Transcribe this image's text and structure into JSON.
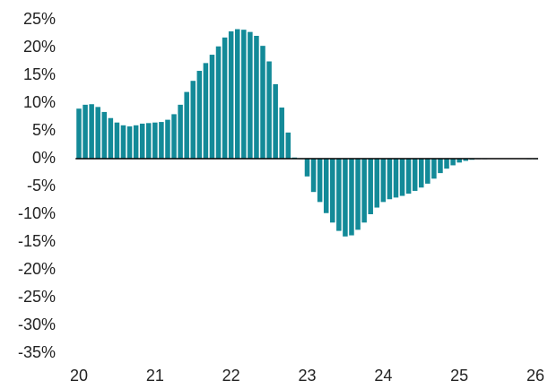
{
  "chart_data": {
    "type": "bar",
    "color": "#138a98",
    "categories": [
      "20",
      null,
      null,
      null,
      null,
      null,
      null,
      null,
      null,
      null,
      null,
      null,
      "21",
      null,
      null,
      null,
      null,
      null,
      null,
      null,
      null,
      null,
      null,
      null,
      "22",
      null,
      null,
      null,
      null,
      null,
      null,
      null,
      null,
      null,
      null,
      null,
      "23",
      null,
      null,
      null,
      null,
      null,
      null,
      null,
      null,
      null,
      null,
      null,
      "24",
      null,
      null,
      null,
      null,
      null,
      null,
      null,
      null,
      null,
      null,
      null,
      "25",
      null,
      null,
      null,
      null,
      null,
      null,
      null,
      null,
      null,
      null,
      null,
      "26"
    ],
    "values": [
      9.0,
      9.7,
      9.8,
      9.3,
      8.4,
      7.3,
      6.5,
      6.0,
      5.8,
      6.0,
      6.3,
      6.4,
      6.5,
      6.6,
      7.0,
      8.0,
      9.7,
      12.0,
      14.0,
      15.8,
      17.2,
      18.7,
      20.2,
      21.8,
      22.9,
      23.3,
      23.2,
      22.8,
      22.1,
      20.3,
      17.5,
      13.4,
      9.2,
      4.7,
      0.2,
      -0.1,
      -3.2,
      -6.0,
      -7.8,
      -9.8,
      -11.5,
      -13.0,
      -14.0,
      -13.8,
      -12.8,
      -11.5,
      -10.0,
      -8.8,
      -7.8,
      -7.3,
      -7.0,
      -6.7,
      -6.3,
      -5.8,
      -5.2,
      -4.5,
      -3.6,
      -2.6,
      -1.8,
      -1.2,
      -0.7,
      -0.4,
      -0.2,
      -0.1,
      -0.1,
      0,
      0,
      0,
      0,
      0,
      0,
      -0.1,
      -0.1
    ],
    "ylim": [
      -35,
      25
    ],
    "yticks": [
      {
        "value": 25,
        "label": "25%"
      },
      {
        "value": 20,
        "label": "20%"
      },
      {
        "value": 15,
        "label": "15%"
      },
      {
        "value": 10,
        "label": "10%"
      },
      {
        "value": 5,
        "label": "5%"
      },
      {
        "value": 0,
        "label": "0%"
      },
      {
        "value": -5,
        "label": "-5%"
      },
      {
        "value": -10,
        "label": "-10%"
      },
      {
        "value": -15,
        "label": "-15%"
      },
      {
        "value": -20,
        "label": "-20%"
      },
      {
        "value": -25,
        "label": "-25%"
      },
      {
        "value": -30,
        "label": "-30%"
      },
      {
        "value": -35,
        "label": "-35%"
      }
    ]
  }
}
